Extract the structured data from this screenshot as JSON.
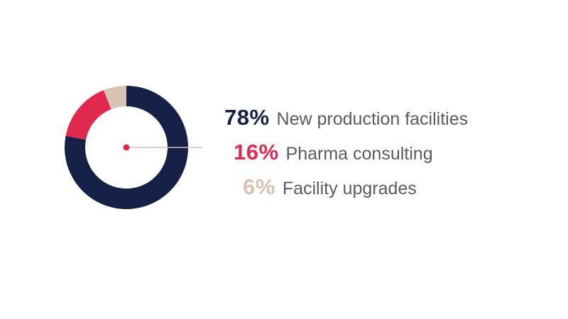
{
  "chart_data": {
    "type": "pie",
    "style": "donut",
    "slices": [
      {
        "value": 78,
        "percent_label": "78%",
        "label": "New production facilities",
        "color": "#152047"
      },
      {
        "value": 16,
        "percent_label": "16%",
        "label": "Pharma consulting",
        "color": "#e0294f"
      },
      {
        "value": 6,
        "percent_label": "6%",
        "label": "Facility upgrades",
        "color": "#d8c2b2"
      }
    ],
    "center_dot_color": "#e0294f",
    "leader_line_color": "#d8c2b2"
  }
}
